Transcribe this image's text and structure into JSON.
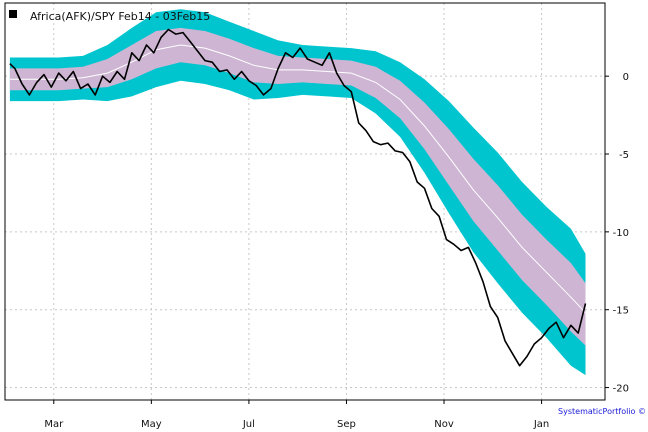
{
  "chart_data": {
    "type": "line",
    "title": "",
    "legend": {
      "label": "Africa(AFK)/SPY Feb14 - 03Feb15",
      "placement": "top-left",
      "marker_color": "#000000"
    },
    "credit": "SystematicPortfolio ©",
    "x_axis": {
      "type": "month-index",
      "range": [
        0,
        12.3
      ],
      "ticks": [
        {
          "label": "Mar",
          "x": 1.0
        },
        {
          "label": "May",
          "x": 3.0
        },
        {
          "label": "Jul",
          "x": 5.0
        },
        {
          "label": "Sep",
          "x": 7.0
        },
        {
          "label": "Nov",
          "x": 9.0
        },
        {
          "label": "Jan",
          "x": 11.0
        }
      ]
    },
    "y_axis": {
      "side": "right",
      "range": [
        -20.8,
        4.7
      ],
      "ticks": [
        0,
        -5,
        -10,
        -15,
        -20
      ]
    },
    "grid": true,
    "colors": {
      "outer_band": "#00c5cf",
      "inner_band": "#cdb5d3",
      "center_line": "#ffffff",
      "price_line": "#000000",
      "grid": "#c8c8c8"
    },
    "bands": {
      "x": [
        0.1,
        0.6,
        1.1,
        1.6,
        2.1,
        2.6,
        3.1,
        3.6,
        4.1,
        4.6,
        5.1,
        5.6,
        6.1,
        6.6,
        7.1,
        7.6,
        8.1,
        8.6,
        9.1,
        9.6,
        10.1,
        10.6,
        11.1,
        11.6,
        11.9
      ],
      "center": [
        -0.2,
        -0.2,
        -0.2,
        -0.1,
        0.2,
        0.9,
        1.7,
        2.0,
        1.8,
        1.3,
        0.7,
        0.4,
        0.4,
        0.3,
        0.2,
        -0.4,
        -1.5,
        -3.2,
        -5.2,
        -7.3,
        -9.1,
        -11.0,
        -12.6,
        -14.2,
        -15.2
      ],
      "inner_upper": [
        0.5,
        0.5,
        0.5,
        0.6,
        1.1,
        2.0,
        2.9,
        3.1,
        2.9,
        2.4,
        1.8,
        1.3,
        1.2,
        1.1,
        1.0,
        0.6,
        -0.3,
        -1.7,
        -3.4,
        -5.3,
        -7.0,
        -8.9,
        -10.5,
        -12.0,
        -13.3
      ],
      "inner_lower": [
        -0.9,
        -0.9,
        -0.9,
        -0.8,
        -0.7,
        -0.2,
        0.5,
        0.9,
        0.7,
        0.2,
        -0.4,
        -0.5,
        -0.4,
        -0.5,
        -0.6,
        -1.4,
        -2.7,
        -4.7,
        -7.0,
        -9.3,
        -11.2,
        -13.1,
        -14.7,
        -16.4,
        -17.3
      ],
      "outer_upper": [
        1.2,
        1.2,
        1.2,
        1.3,
        2.0,
        3.1,
        4.1,
        4.3,
        4.1,
        3.5,
        2.9,
        2.3,
        2.0,
        1.9,
        1.8,
        1.6,
        0.9,
        -0.2,
        -1.6,
        -3.3,
        -4.9,
        -6.8,
        -8.4,
        -9.8,
        -11.4
      ],
      "outer_lower": [
        -1.6,
        -1.6,
        -1.6,
        -1.5,
        -1.6,
        -1.3,
        -0.7,
        -0.3,
        -0.5,
        -0.9,
        -1.5,
        -1.4,
        -1.2,
        -1.3,
        -1.4,
        -2.4,
        -3.9,
        -6.2,
        -8.8,
        -11.3,
        -13.3,
        -15.2,
        -16.8,
        -18.6,
        -19.2
      ]
    },
    "series": [
      {
        "x": [
          0.1,
          0.2,
          0.35,
          0.5,
          0.65,
          0.8,
          0.95,
          1.1,
          1.25,
          1.4,
          1.55,
          1.7,
          1.85,
          2.0,
          2.15,
          2.3,
          2.45,
          2.6,
          2.75,
          2.9,
          3.05,
          3.2,
          3.35,
          3.5,
          3.65,
          3.8,
          3.95,
          4.1,
          4.25,
          4.4,
          4.55,
          4.7,
          4.85,
          5.0,
          5.15,
          5.3,
          5.45,
          5.6,
          5.75,
          5.9,
          6.05,
          6.2,
          6.35,
          6.5,
          6.65,
          6.8,
          6.95,
          7.1,
          7.25,
          7.4,
          7.55,
          7.7,
          7.85,
          8.0,
          8.15,
          8.3,
          8.45,
          8.6,
          8.75,
          8.9,
          9.05,
          9.2,
          9.35,
          9.5,
          9.65,
          9.8,
          9.95,
          10.1,
          10.25,
          10.4,
          10.55,
          10.7,
          10.85,
          11.0,
          11.15,
          11.3,
          11.45,
          11.6,
          11.75,
          11.9
        ],
        "values": [
          0.8,
          0.5,
          -0.5,
          -1.2,
          -0.4,
          0.1,
          -0.7,
          0.2,
          -0.3,
          0.3,
          -0.8,
          -0.5,
          -1.2,
          0.0,
          -0.4,
          0.3,
          -0.2,
          1.5,
          1.0,
          2.0,
          1.5,
          2.5,
          3.0,
          2.7,
          2.8,
          2.2,
          1.6,
          1.0,
          0.9,
          0.3,
          0.4,
          -0.2,
          0.3,
          -0.3,
          -0.6,
          -1.2,
          -0.8,
          0.5,
          1.5,
          1.2,
          1.8,
          1.1,
          0.9,
          0.7,
          1.5,
          0.2,
          -0.6,
          -1.0,
          -3.0,
          -3.5,
          -4.2,
          -4.4,
          -4.3,
          -4.8,
          -4.9,
          -5.5,
          -6.8,
          -7.2,
          -8.5,
          -9.0,
          -10.5,
          -10.8,
          -11.2,
          -11.0,
          -12.0,
          -13.2,
          -14.8,
          -15.5,
          -17.0,
          -17.8,
          -18.6,
          -18.0,
          -17.2,
          -16.8,
          -16.2,
          -15.8,
          -16.8,
          -16.0,
          -16.5,
          -14.6
        ]
      }
    ]
  }
}
